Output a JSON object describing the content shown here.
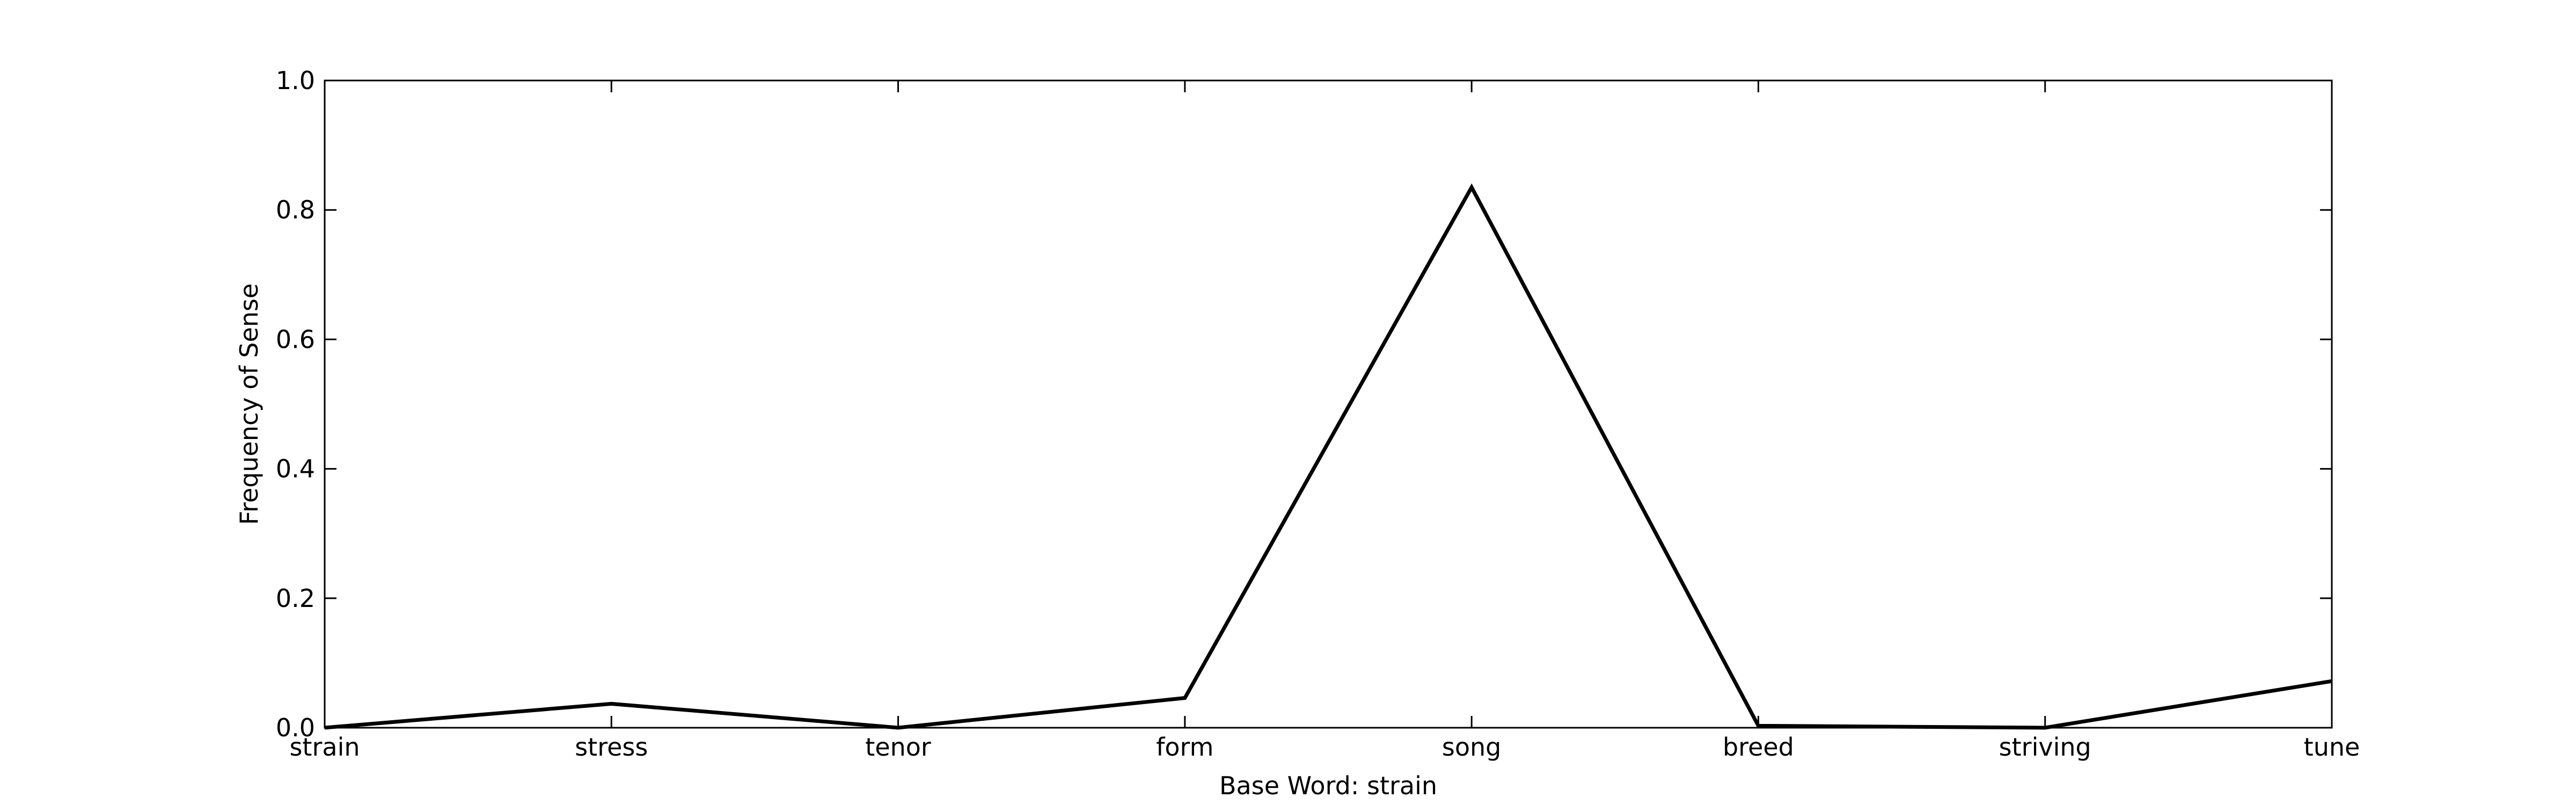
{
  "chart_data": {
    "type": "line",
    "categories": [
      "strain",
      "stress",
      "tenor",
      "form",
      "song",
      "breed",
      "striving",
      "tune"
    ],
    "values": [
      0.0,
      0.037,
      0.0,
      0.046,
      0.835,
      0.003,
      0.0,
      0.072
    ],
    "title": "",
    "xlabel": "Base Word: strain",
    "ylabel": "Frequency of Sense",
    "ylim": [
      0.0,
      1.0
    ],
    "yticks": [
      "0.0",
      "0.2",
      "0.4",
      "0.6",
      "0.8",
      "1.0"
    ],
    "grid": false,
    "legend": "none",
    "line_color": "#000000"
  }
}
